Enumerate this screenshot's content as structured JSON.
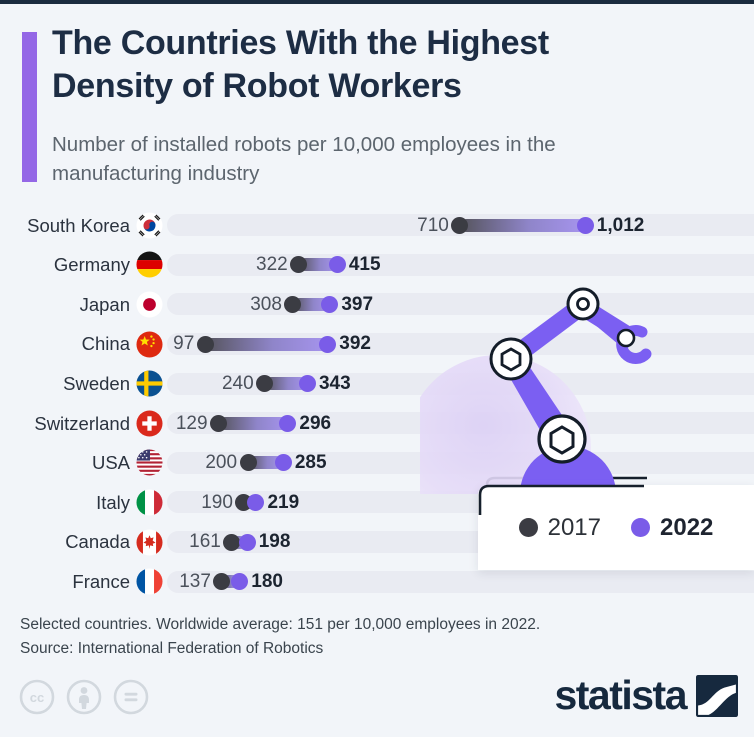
{
  "header": {
    "title_line1": "The Countries With the Highest",
    "title_line2": "Density of Robot Workers",
    "subtitle": "Number of installed robots per 10,000 employees in the manufacturing industry"
  },
  "chart_data": {
    "type": "dumbbell-bar",
    "title": "The Countries With the Highest Density of Robot Workers",
    "subtitle": "Number of installed robots per 10,000 employees in the manufacturing industry",
    "categories": [
      "South Korea",
      "Germany",
      "Japan",
      "China",
      "Sweden",
      "Switzerland",
      "USA",
      "Italy",
      "Canada",
      "France"
    ],
    "series": [
      {
        "name": "2017",
        "values": [
          710,
          322,
          308,
          97,
          240,
          129,
          200,
          190,
          161,
          137
        ]
      },
      {
        "name": "2022",
        "values": [
          1012,
          415,
          397,
          392,
          343,
          296,
          285,
          219,
          198,
          180
        ]
      }
    ],
    "xlim": [
      0,
      1100
    ],
    "legend_position": "bottom-right",
    "grid": false,
    "rows": [
      {
        "country": "South Korea",
        "flag": "kr",
        "v2017": 710,
        "v2022": 1012,
        "label2017": "710",
        "label2022": "1,012"
      },
      {
        "country": "Germany",
        "flag": "de",
        "v2017": 322,
        "v2022": 415,
        "label2017": "322",
        "label2022": "415"
      },
      {
        "country": "Japan",
        "flag": "jp",
        "v2017": 308,
        "v2022": 397,
        "label2017": "308",
        "label2022": "397"
      },
      {
        "country": "China",
        "flag": "cn",
        "v2017": 97,
        "v2022": 392,
        "label2017": "97",
        "label2022": "392"
      },
      {
        "country": "Sweden",
        "flag": "se",
        "v2017": 240,
        "v2022": 343,
        "label2017": "240",
        "label2022": "343"
      },
      {
        "country": "Switzerland",
        "flag": "ch",
        "v2017": 129,
        "v2022": 296,
        "label2017": "129",
        "label2022": "296"
      },
      {
        "country": "USA",
        "flag": "us",
        "v2017": 200,
        "v2022": 285,
        "label2017": "200",
        "label2022": "285"
      },
      {
        "country": "Italy",
        "flag": "it",
        "v2017": 190,
        "v2022": 219,
        "label2017": "190",
        "label2022": "219"
      },
      {
        "country": "Canada",
        "flag": "ca",
        "v2017": 161,
        "v2022": 198,
        "label2017": "161",
        "label2022": "198"
      },
      {
        "country": "France",
        "flag": "fr",
        "v2017": 137,
        "v2022": 180,
        "label2017": "137",
        "label2022": "180"
      }
    ]
  },
  "legend": {
    "items": [
      {
        "label": "2017",
        "color": "#3b3c43",
        "bold": false
      },
      {
        "label": "2022",
        "color": "#7a5ce8",
        "bold": true
      }
    ]
  },
  "footer": {
    "note": "Selected countries. Worldwide average: 151 per 10,000 employees in 2022.",
    "source": "Source: International Federation of Robotics",
    "license_icons": [
      "cc-icon",
      "attribution-icon",
      "equals-icon"
    ]
  },
  "branding": {
    "logo_text": "statista"
  },
  "colors": {
    "background": "#f2f5f9",
    "accent_purple": "#9467e6",
    "robot_purple": "#7b5ff2",
    "dot_2017": "#3b3c43",
    "dot_2022": "#7a5ce8",
    "navy": "#16293e",
    "row_track": "#e9ebf2"
  }
}
